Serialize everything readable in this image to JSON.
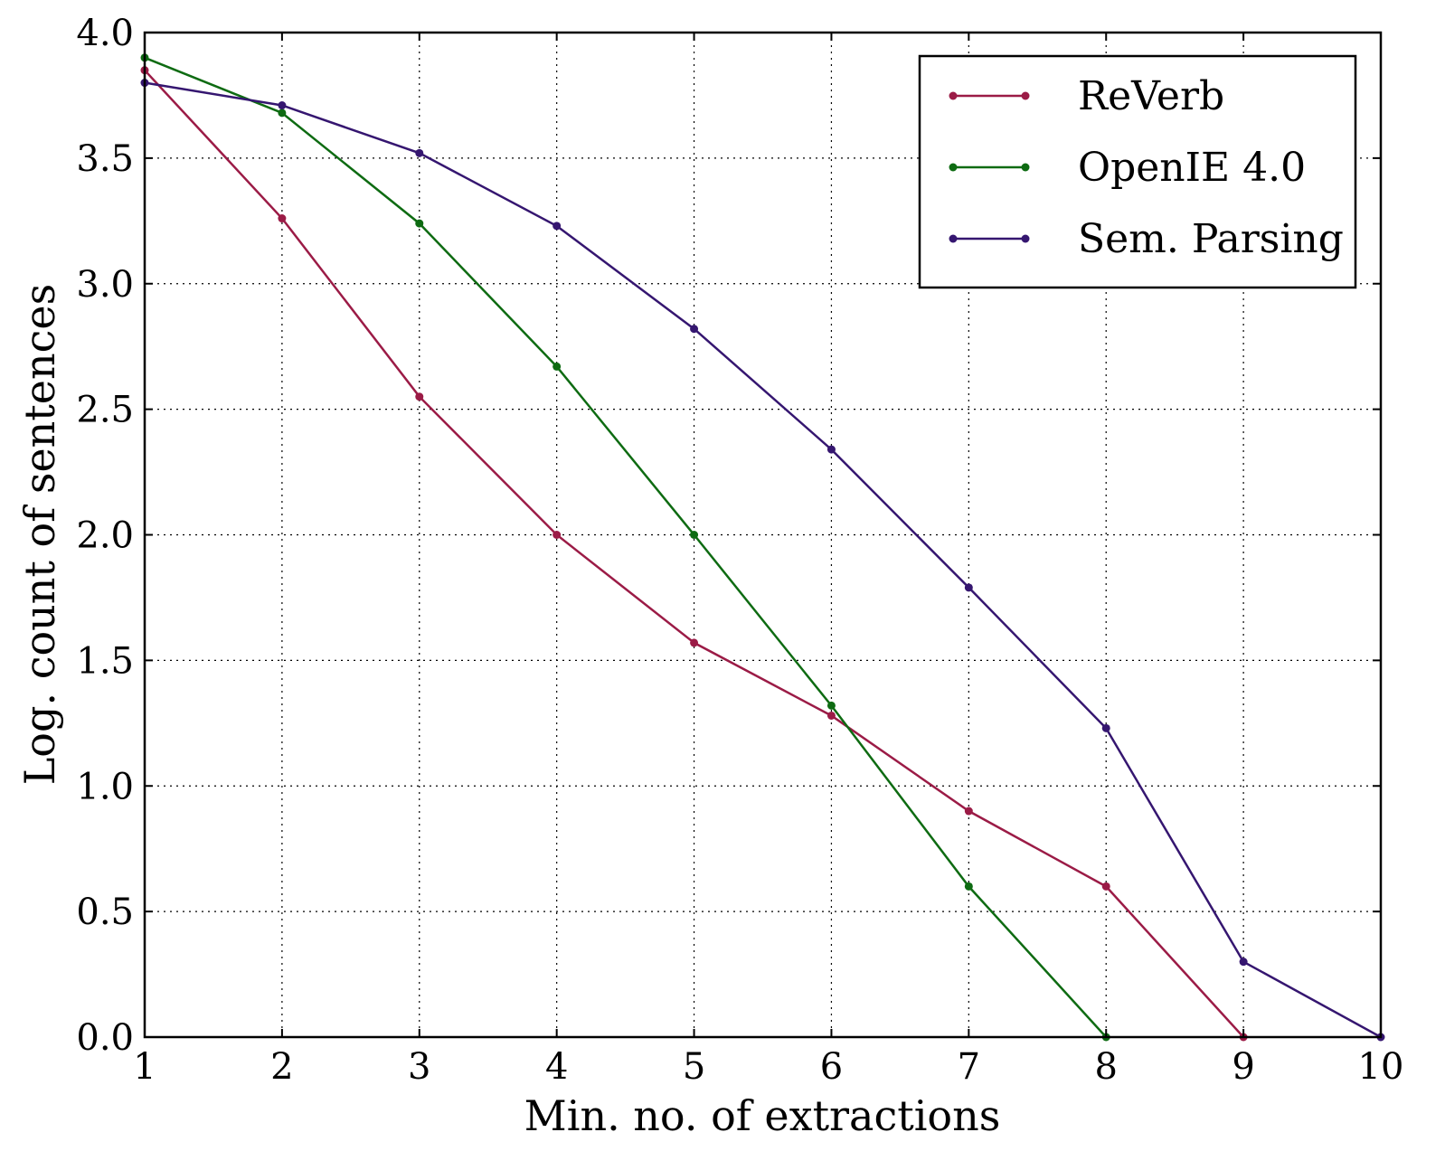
{
  "chart_data": {
    "type": "line",
    "xlabel": "Min. no. of extractions",
    "ylabel": "Log. count of sentences",
    "xlim": [
      1,
      10
    ],
    "ylim": [
      0.0,
      4.0
    ],
    "x_ticks": [
      "1",
      "2",
      "3",
      "4",
      "5",
      "6",
      "7",
      "8",
      "9",
      "10"
    ],
    "y_ticks": [
      "0.0",
      "0.5",
      "1.0",
      "1.5",
      "2.0",
      "2.5",
      "3.0",
      "3.5",
      "4.0"
    ],
    "grid": true,
    "legend_position": "top-right",
    "series": [
      {
        "name": "ReVerb",
        "color": "#9b1b46",
        "x": [
          1,
          2,
          3,
          4,
          5,
          6,
          7,
          8,
          9
        ],
        "y": [
          3.85,
          3.26,
          2.55,
          2.0,
          1.57,
          1.28,
          0.9,
          0.6,
          0.0
        ]
      },
      {
        "name": "OpenIE 4.0",
        "color": "#0e6b12",
        "x": [
          1,
          2,
          3,
          4,
          5,
          6,
          7,
          8
        ],
        "y": [
          3.9,
          3.68,
          3.24,
          2.67,
          2.0,
          1.32,
          0.6,
          0.0
        ]
      },
      {
        "name": "Sem. Parsing",
        "color": "#351670",
        "x": [
          1,
          2,
          3,
          4,
          5,
          6,
          7,
          8,
          9,
          10
        ],
        "y": [
          3.8,
          3.71,
          3.52,
          3.23,
          2.82,
          2.34,
          1.79,
          1.23,
          0.3,
          0.0
        ]
      }
    ]
  }
}
